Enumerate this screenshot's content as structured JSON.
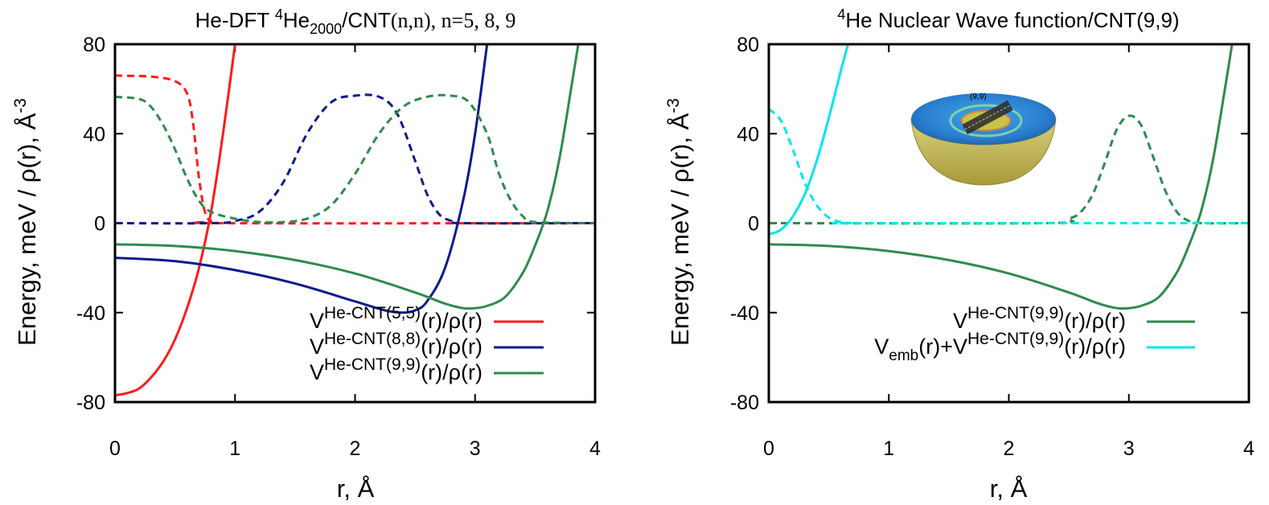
{
  "colors": {
    "red": "#ff1a1a",
    "navy": "#0a1a8c",
    "green": "#2e8b4e",
    "cyan": "#00e5ee",
    "frame": "#000000"
  },
  "chart_data": [
    {
      "type": "line",
      "title": {
        "pre": "He-DFT ",
        "sup": "4",
        "mid": "He",
        "sub": "2000",
        "post": "/CNT",
        "tail": "(n,n), n=5, 8, 9"
      },
      "xlabel": "r, Å",
      "ylabel": "Energy, meV / ρ(r), Å⁻³",
      "ylabel_parts": {
        "main": "Energy, meV / ρ(r), ",
        "unit": "Å",
        "exp": "-3"
      },
      "xlim": [
        0,
        4
      ],
      "ylim": [
        -80,
        80
      ],
      "xticks": [
        "0",
        "1",
        "2",
        "3",
        "4"
      ],
      "yticks": [
        "80",
        "40",
        "0",
        "-40",
        "-80"
      ],
      "legend_position": "bottom-right",
      "legend": [
        {
          "base": "V",
          "sup": "He-CNT(5,5)",
          "tail": "(r)/ρ(r)",
          "color": "red"
        },
        {
          "base": "V",
          "sup": "He-CNT(8,8)",
          "tail": "(r)/ρ(r)",
          "color": "navy"
        },
        {
          "base": "V",
          "sup": "He-CNT(9,9)",
          "tail": "(r)/ρ(r)",
          "color": "green"
        }
      ],
      "series": [
        {
          "kind": "potential",
          "color": "red",
          "style": "solid",
          "x": [
            0,
            0.1,
            0.2,
            0.3,
            0.4,
            0.5,
            0.6,
            0.7,
            0.8,
            0.9,
            1.0
          ],
          "y": [
            -77,
            -76,
            -74,
            -69,
            -62,
            -52,
            -38,
            -20,
            5,
            40,
            80
          ]
        },
        {
          "kind": "density",
          "color": "red",
          "style": "dashed",
          "x": [
            0,
            0.3,
            0.5,
            0.6,
            0.65,
            0.7,
            0.75,
            0.8,
            0.9,
            4
          ],
          "y": [
            66,
            65.5,
            63.5,
            58,
            45,
            20,
            5,
            1,
            0,
            0
          ]
        },
        {
          "kind": "potential",
          "color": "navy",
          "style": "solid",
          "x": [
            0,
            0.5,
            1,
            1.5,
            2,
            2.25,
            2.4,
            2.5,
            2.6,
            2.75,
            2.9,
            3.0,
            3.1
          ],
          "y": [
            -15.5,
            -17,
            -21,
            -27,
            -35,
            -39,
            -40,
            -39,
            -35,
            -20,
            10,
            40,
            80
          ]
        },
        {
          "kind": "density",
          "color": "navy",
          "style": "dashed",
          "x": [
            0,
            0.8,
            1.0,
            1.2,
            1.4,
            1.6,
            1.8,
            2.0,
            2.2,
            2.35,
            2.5,
            2.6,
            2.7,
            2.8,
            2.9,
            4
          ],
          "y": [
            0,
            0,
            1,
            5,
            18,
            40,
            54,
            57,
            56.5,
            49,
            28,
            13,
            4,
            1,
            0,
            0
          ]
        },
        {
          "kind": "potential",
          "color": "green",
          "style": "solid",
          "x": [
            0,
            0.5,
            1,
            1.5,
            2,
            2.5,
            2.75,
            2.9,
            3.0,
            3.1,
            3.25,
            3.4,
            3.5,
            3.6,
            3.7,
            3.8,
            3.86
          ],
          "y": [
            -9.5,
            -10.2,
            -12.5,
            -16.5,
            -22.5,
            -31,
            -36,
            -38,
            -38,
            -37,
            -33,
            -22,
            -10,
            5,
            28,
            60,
            80
          ]
        },
        {
          "kind": "density",
          "color": "green",
          "style": "dashed",
          "x": [
            0,
            0.2,
            0.3,
            0.4,
            0.5,
            0.6,
            0.7,
            0.8,
            1.0,
            1.2,
            1.4,
            1.6,
            1.8,
            2.0,
            2.2,
            2.4,
            2.6,
            2.8,
            2.95,
            3.1,
            3.2,
            3.3,
            3.4,
            3.5,
            4
          ],
          "y": [
            56.5,
            55.5,
            52,
            44,
            33,
            20,
            10,
            5,
            2,
            0.5,
            0.5,
            2,
            8,
            22,
            40,
            52,
            56.5,
            57,
            54,
            40,
            22,
            10,
            3,
            0.5,
            0
          ]
        }
      ]
    },
    {
      "type": "line",
      "title": {
        "sup": "4",
        "text": "He Nuclear Wave function/CNT(9,9)"
      },
      "xlabel": "r, Å",
      "ylabel": "Energy, meV / ρ(r), Å⁻³",
      "ylabel_parts": {
        "main": "Energy, meV / ρ(r), ",
        "unit": "Å",
        "exp": "-3"
      },
      "xlim": [
        0,
        4
      ],
      "ylim": [
        -80,
        80
      ],
      "xticks": [
        "0",
        "1",
        "2",
        "3",
        "4"
      ],
      "yticks": [
        "80",
        "40",
        "0",
        "-40",
        "-80"
      ],
      "legend_position": "bottom-right",
      "legend": [
        {
          "base": "V",
          "sup": "He-CNT(9,9)",
          "tail": "(r)/ρ(r)",
          "color": "green"
        },
        {
          "pre": "V",
          "pre_sub": "emb",
          "pre_tail": "(r)+",
          "base": "V",
          "sup": "He-CNT(9,9)",
          "tail": "(r)/ρ(r)",
          "color": "cyan"
        }
      ],
      "inset_label": "(9,9)",
      "series": [
        {
          "kind": "potential",
          "color": "green",
          "style": "solid",
          "x": [
            0,
            0.5,
            1,
            1.5,
            2,
            2.5,
            2.75,
            2.9,
            3.0,
            3.1,
            3.25,
            3.4,
            3.5,
            3.6,
            3.7,
            3.8,
            3.86
          ],
          "y": [
            -9.5,
            -10.2,
            -12.5,
            -16.5,
            -22.5,
            -31,
            -36,
            -38,
            -38,
            -37,
            -33,
            -22,
            -10,
            5,
            28,
            60,
            80
          ]
        },
        {
          "kind": "density",
          "color": "green",
          "style": "dashed",
          "x": [
            0,
            2.3,
            2.5,
            2.6,
            2.7,
            2.8,
            2.9,
            3.0,
            3.1,
            3.2,
            3.3,
            3.4,
            3.5,
            3.6,
            4
          ],
          "y": [
            0,
            0,
            2,
            5,
            13,
            27,
            42,
            48,
            44,
            30,
            15,
            5,
            1,
            0,
            0
          ]
        },
        {
          "kind": "potential",
          "color": "cyan",
          "style": "solid",
          "x": [
            0,
            0.1,
            0.2,
            0.3,
            0.4,
            0.5,
            0.6,
            0.66
          ],
          "y": [
            -5,
            -3,
            3,
            13,
            28,
            47,
            68,
            80
          ]
        },
        {
          "kind": "density",
          "color": "cyan",
          "style": "dashed",
          "x": [
            0,
            0.1,
            0.2,
            0.3,
            0.4,
            0.5,
            0.6,
            0.7,
            0.8,
            4
          ],
          "y": [
            51,
            46,
            33,
            18,
            8,
            2.5,
            0.5,
            0,
            0,
            0
          ]
        }
      ]
    }
  ]
}
